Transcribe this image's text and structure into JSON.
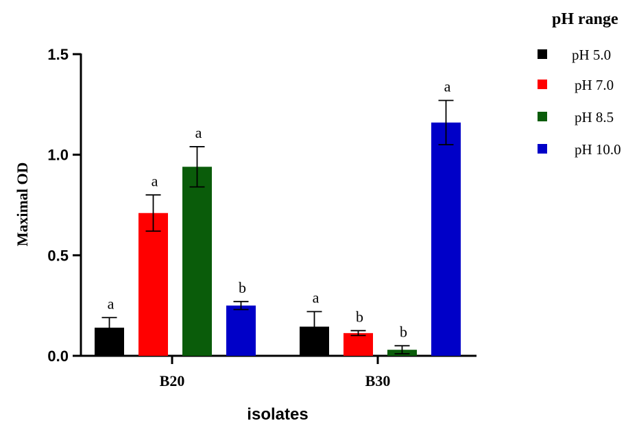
{
  "chart_data": {
    "type": "bar",
    "categories": [
      "B20",
      "B30"
    ],
    "series": [
      {
        "name": "pH 5.0",
        "color": "#000000",
        "values": [
          0.14,
          0.145
        ],
        "errors": [
          0.05,
          0.075
        ],
        "labels": [
          "a",
          "a"
        ]
      },
      {
        "name": "pH 7.0",
        "color": "#ff0000",
        "values": [
          0.71,
          0.113
        ],
        "errors": [
          0.09,
          0.012
        ],
        "labels": [
          "a",
          "b"
        ]
      },
      {
        "name": "pH 8.5",
        "color": "#0a5c0a",
        "values": [
          0.94,
          0.03
        ],
        "errors": [
          0.1,
          0.02
        ],
        "labels": [
          "a",
          "b"
        ]
      },
      {
        "name": "pH 10.0",
        "color": "#0000c8",
        "values": [
          0.25,
          1.16
        ],
        "errors": [
          0.02,
          0.11
        ],
        "labels": [
          "b",
          "a"
        ]
      }
    ],
    "xlabel": "isolates",
    "ylabel": "Maximal OD",
    "ylim": [
      0,
      1.5
    ],
    "yticks": [
      "0.0",
      "0.5",
      "1.0",
      "1.5"
    ],
    "ytick_values": [
      0,
      0.5,
      1.0,
      1.5
    ],
    "legend_title": "pH range",
    "legend_position": "top-right",
    "grid": false
  }
}
